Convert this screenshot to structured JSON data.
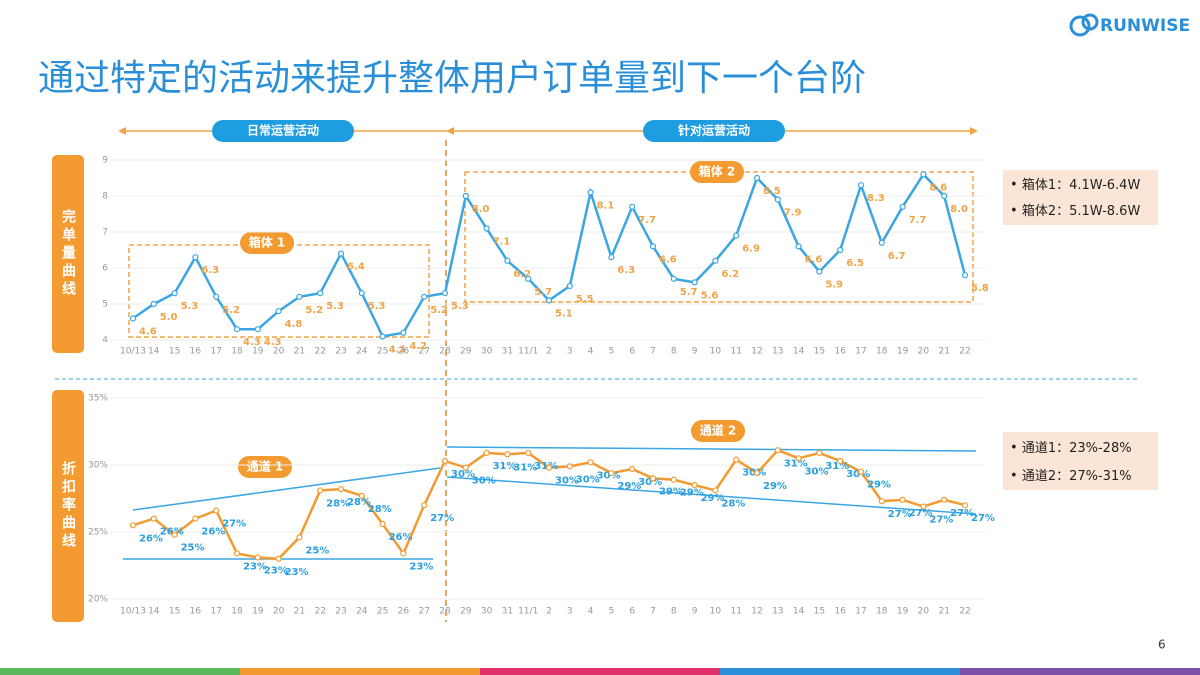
{
  "header": {
    "title": "通过特定的活动来提升整体用户订单量到下一个台阶",
    "logo": "RUNWISE",
    "page": "6"
  },
  "phases": [
    "日常运营活动",
    "针对运营活动"
  ],
  "chart_data": [
    {
      "type": "line",
      "side_label": "完单量曲线",
      "categories": [
        "10/13",
        "14",
        "15",
        "16",
        "17",
        "18",
        "19",
        "20",
        "21",
        "22",
        "23",
        "24",
        "25",
        "26",
        "27",
        "28",
        "29",
        "30",
        "31",
        "11/1",
        "2",
        "3",
        "4",
        "5",
        "6",
        "7",
        "8",
        "9",
        "10",
        "11",
        "12",
        "13",
        "14",
        "15",
        "16",
        "17",
        "18",
        "19",
        "20",
        "21",
        "22"
      ],
      "series": [
        {
          "color": "#3aa6e2",
          "label_color": "#f0a448",
          "values": [
            4.6,
            5.0,
            5.3,
            6.3,
            5.2,
            4.3,
            4.3,
            4.8,
            5.2,
            5.3,
            6.4,
            5.3,
            4.1,
            4.2,
            5.2,
            5.3,
            8.0,
            7.1,
            6.2,
            5.7,
            5.1,
            5.5,
            8.1,
            6.3,
            7.7,
            6.6,
            5.7,
            5.6,
            6.2,
            6.9,
            8.5,
            7.9,
            6.6,
            5.9,
            6.5,
            8.3,
            6.7,
            7.7,
            8.6,
            8.0,
            5.8
          ],
          "value_labels": [
            "4.6",
            "5.0",
            "5.3",
            "6.3",
            "5.2",
            "4.3",
            "4.3",
            "4.8",
            "5.2",
            "5.3",
            "6.4",
            "5.3",
            "4.1",
            "4.2",
            "5.2",
            "5.3",
            "8.0",
            "7.1",
            "6.2",
            "5.7",
            "5.1",
            "5.5",
            "8.1",
            "6.3",
            "7.7",
            "6.6",
            "5.7",
            "5.6",
            "6.2",
            "6.9",
            "8.5",
            "7.9",
            "6.6",
            "5.9",
            "6.5",
            "8.3",
            "6.7",
            "7.7",
            "8.6",
            "8.0",
            "5.8"
          ]
        }
      ],
      "ylim": [
        4,
        9
      ],
      "yticks": [
        4,
        5,
        6,
        7,
        8,
        9
      ],
      "grid": true,
      "annotations": [
        "箱体 1",
        "箱体 2"
      ],
      "notes": [
        "箱体1：4.1W-6.4W",
        "箱体2：5.1W-8.6W"
      ]
    },
    {
      "type": "line",
      "side_label": "折扣率曲线",
      "categories": [
        "10/13",
        "14",
        "15",
        "16",
        "17",
        "18",
        "19",
        "20",
        "21",
        "22",
        "23",
        "24",
        "25",
        "26",
        "27",
        "28",
        "29",
        "30",
        "31",
        "11/1",
        "2",
        "3",
        "4",
        "5",
        "6",
        "7",
        "8",
        "9",
        "10",
        "11",
        "12",
        "13",
        "14",
        "15",
        "16",
        "17",
        "18",
        "19",
        "20",
        "21",
        "22"
      ],
      "series": [
        {
          "color": "#f39a30",
          "label_color": "#2a9fe0",
          "values": [
            25.5,
            26.0,
            24.8,
            26.0,
            26.6,
            23.4,
            23.1,
            23.0,
            24.6,
            28.1,
            28.2,
            27.7,
            25.6,
            23.4,
            27.0,
            30.3,
            29.8,
            30.9,
            30.8,
            30.9,
            29.8,
            29.9,
            30.2,
            29.4,
            29.7,
            29.0,
            28.9,
            28.5,
            28.1,
            30.4,
            29.4,
            31.1,
            30.5,
            30.9,
            30.3,
            29.5,
            27.3,
            27.4,
            26.9,
            27.4,
            27.0
          ],
          "value_labels": [
            "26%",
            "26%",
            "25%",
            "26%",
            "27%",
            "23%",
            "23%",
            "23%",
            "25%",
            "28%",
            "28%",
            "28%",
            "26%",
            "23%",
            "27%",
            "30%",
            "30%",
            "31%",
            "31%",
            "31%",
            "30%",
            "30%",
            "30%",
            "29%",
            "30%",
            "29%",
            "29%",
            "29%",
            "28%",
            "30%",
            "29%",
            "31%",
            "30%",
            "31%",
            "30%",
            "29%",
            "27%",
            "27%",
            "27%",
            "27%",
            "27%"
          ]
        }
      ],
      "ylim": [
        20,
        35
      ],
      "yticks": [
        {
          "value": 20,
          "label": "20%"
        },
        {
          "value": 25,
          "label": "25%"
        },
        {
          "value": 30,
          "label": "30%"
        },
        {
          "value": 35,
          "label": "35%"
        }
      ],
      "grid": true,
      "annotations": [
        "通道 1",
        "通道 2"
      ],
      "notes": [
        "通道1：23%-28%",
        "通道2：27%-31%"
      ]
    }
  ]
}
